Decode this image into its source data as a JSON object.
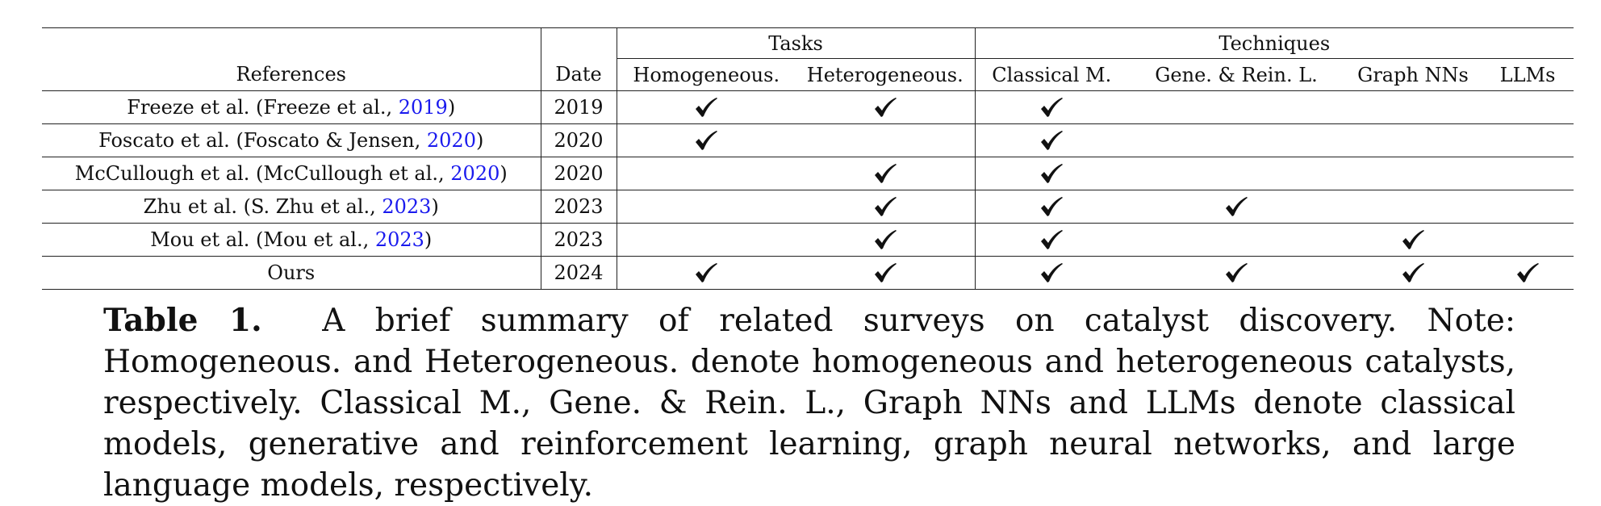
{
  "table": {
    "group_headers": {
      "tasks": "Tasks",
      "techniques": "Techniques"
    },
    "columns": {
      "references": "References",
      "date": "Date",
      "homogeneous": "Homogeneous.",
      "heterogeneous": "Heterogeneous.",
      "classical": "Classical M.",
      "gene_rein": "Gene. & Rein. L.",
      "graph_nns": "Graph NNs",
      "llms": "LLMs"
    },
    "rows": [
      {
        "ref_prefix": "Freeze et al. (Freeze et al., ",
        "ref_year": "2019",
        "ref_suffix": ")",
        "date": "2019",
        "checks": {
          "homogeneous": true,
          "heterogeneous": true,
          "classical": true,
          "gene_rein": false,
          "graph_nns": false,
          "llms": false
        }
      },
      {
        "ref_prefix": "Foscato et al. (Foscato & Jensen, ",
        "ref_year": "2020",
        "ref_suffix": ")",
        "date": "2020",
        "checks": {
          "homogeneous": true,
          "heterogeneous": false,
          "classical": true,
          "gene_rein": false,
          "graph_nns": false,
          "llms": false
        }
      },
      {
        "ref_prefix": "McCullough et al. (McCullough et al., ",
        "ref_year": "2020",
        "ref_suffix": ")",
        "date": "2020",
        "checks": {
          "homogeneous": false,
          "heterogeneous": true,
          "classical": true,
          "gene_rein": false,
          "graph_nns": false,
          "llms": false
        }
      },
      {
        "ref_prefix": "Zhu et al. (S. Zhu et al., ",
        "ref_year": "2023",
        "ref_suffix": ")",
        "date": "2023",
        "checks": {
          "homogeneous": false,
          "heterogeneous": true,
          "classical": true,
          "gene_rein": true,
          "graph_nns": false,
          "llms": false
        }
      },
      {
        "ref_prefix": "Mou et al. (Mou et al., ",
        "ref_year": "2023",
        "ref_suffix": ")",
        "date": "2023",
        "checks": {
          "homogeneous": false,
          "heterogeneous": true,
          "classical": true,
          "gene_rein": false,
          "graph_nns": true,
          "llms": false
        }
      },
      {
        "ref_prefix": "Ours",
        "ref_year": "",
        "ref_suffix": "",
        "date": "2024",
        "checks": {
          "homogeneous": true,
          "heterogeneous": true,
          "classical": true,
          "gene_rein": true,
          "graph_nns": true,
          "llms": true
        }
      }
    ],
    "check_icon": "checkmark-icon",
    "citation_color": "#1a1aee"
  },
  "caption": {
    "label": "Table 1.",
    "text": "A brief summary of related surveys on catalyst discovery. Note: Homogeneous. and Heterogeneous. denote homogeneous and heterogeneous catalysts, respectively. Classical M., Gene. & Rein. L., Graph NNs and LLMs denote classical models, generative and reinforcement learning, graph neural networks, and large language models, respectively."
  }
}
